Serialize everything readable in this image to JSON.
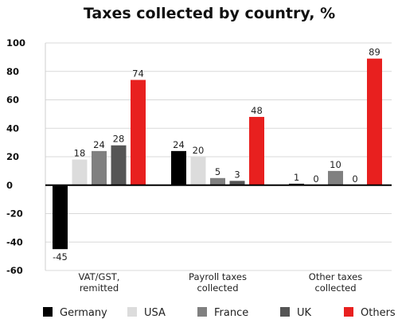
{
  "chart_data": {
    "type": "bar",
    "title": "Taxes collected by country, %",
    "categories": [
      "VAT/GST, remitted",
      "Payroll taxes collected",
      "Other taxes collected"
    ],
    "category_lines": [
      [
        "VAT/GST,",
        "remitted"
      ],
      [
        "Payroll taxes",
        "collected"
      ],
      [
        "Other taxes",
        "collected"
      ]
    ],
    "series": [
      {
        "name": "Germany",
        "color": "#000000",
        "values": [
          -45,
          24,
          1
        ]
      },
      {
        "name": "USA",
        "color": "#dcdcdc",
        "values": [
          18,
          20,
          0
        ]
      },
      {
        "name": "France",
        "color": "#808080",
        "values": [
          24,
          5,
          10
        ]
      },
      {
        "name": "UK",
        "color": "#555555",
        "values": [
          28,
          3,
          0
        ]
      },
      {
        "name": "Others",
        "color": "#e8201f",
        "values": [
          74,
          48,
          89
        ]
      }
    ],
    "ylim": [
      -60,
      100
    ],
    "yticks": [
      -60,
      -40,
      -20,
      0,
      20,
      40,
      60,
      80,
      100
    ],
    "xlabel": "",
    "ylabel": "",
    "grid": true,
    "legend": "bottom"
  }
}
